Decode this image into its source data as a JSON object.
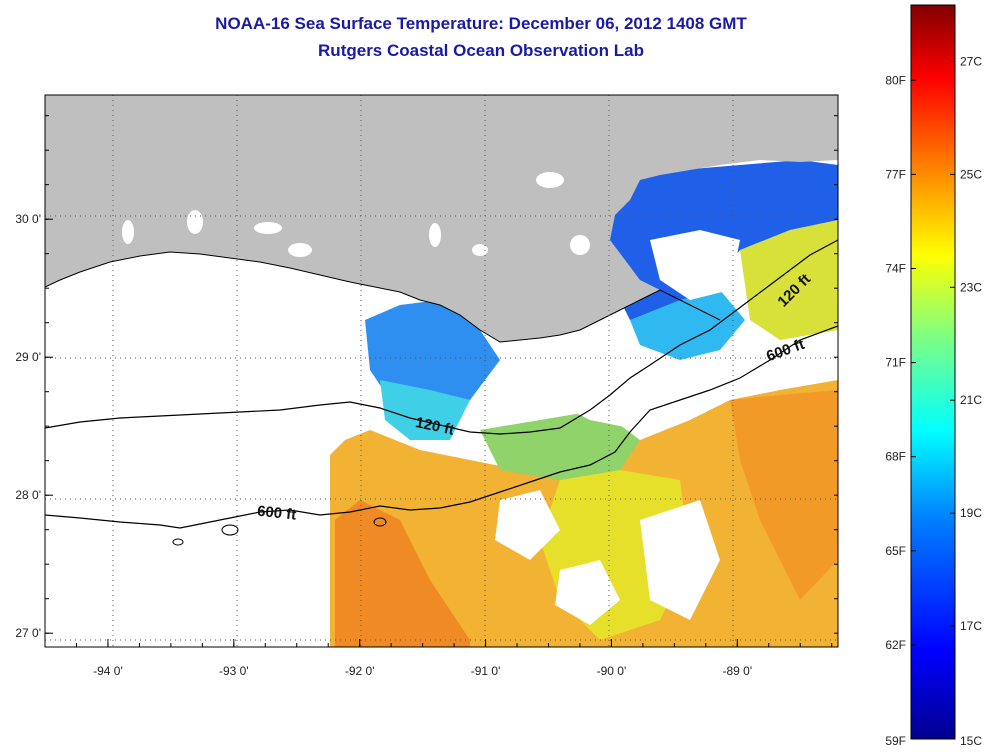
{
  "title": "NOAA-16 Sea Surface Temperature:  December 06, 2012 1408 GMT",
  "subtitle": "Rutgers Coastal Ocean Observation Lab",
  "map": {
    "lon_range": [
      -94.5,
      -88.2
    ],
    "lat_range": [
      26.9,
      30.9
    ],
    "lon_ticks": [
      {
        "value": -94,
        "label": "-94 0'"
      },
      {
        "value": -93,
        "label": "-93 0'"
      },
      {
        "value": -92,
        "label": "-92 0'"
      },
      {
        "value": -91,
        "label": "-91 0'"
      },
      {
        "value": -90,
        "label": "-90 0'"
      },
      {
        "value": -89,
        "label": "-89 0'"
      }
    ],
    "lat_ticks": [
      {
        "value": 30,
        "label": "30 0'"
      },
      {
        "value": 29,
        "label": "29 0'"
      },
      {
        "value": 28,
        "label": "28 0'"
      },
      {
        "value": 27,
        "label": "27 0'"
      }
    ],
    "land_color": "#bfbfbf",
    "ocean_nodata_color": "#ffffff",
    "grid": "dotted",
    "contours": [
      {
        "label": "120 ft",
        "depth_ft": 120
      },
      {
        "label": "600 ft",
        "depth_ft": 600
      }
    ]
  },
  "colorbar": {
    "min_c": 15,
    "max_c": 28,
    "colors": [
      "#00008f",
      "#0000ff",
      "#0080ff",
      "#00ffff",
      "#80ff80",
      "#ffff00",
      "#ff8000",
      "#ff0000",
      "#800000"
    ],
    "left_labels": [
      "80F",
      "77F",
      "74F",
      "71F",
      "68F",
      "65F",
      "62F",
      "59F"
    ],
    "right_labels": [
      "27C",
      "25C",
      "23C",
      "21C",
      "19C",
      "17C",
      "15C"
    ]
  }
}
